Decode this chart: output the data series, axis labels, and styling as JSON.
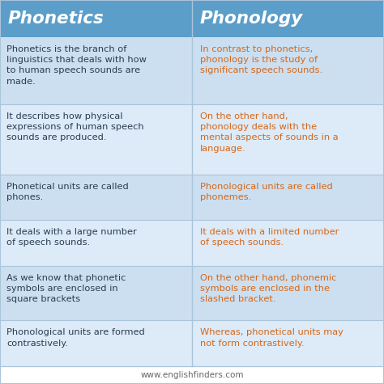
{
  "title_left": "Phonetics",
  "title_right": "Phonology",
  "header_bg": "#5b9ec9",
  "header_text_color": "#ffffff",
  "row_bg_odd": "#ccdff0",
  "row_bg_even": "#ddeaf7",
  "left_text_color": "#2a3d52",
  "right_text_color": "#d4681a",
  "divider_color": "#aac4da",
  "footer_text": "www.englishfinders.com",
  "footer_color": "#666666",
  "rows": [
    {
      "left": "Phonetics is the branch of\nlinguistics that deals with how\nto human speech sounds are\nmade.",
      "right": "In contrast to phonetics,\nphonology is the study of\nsignificant speech sounds."
    },
    {
      "left": "It describes how physical\nexpressions of human speech\nsounds are produced.",
      "right": "On the other hand,\nphonology deals with the\nmental aspects of sounds in a\nlanguage."
    },
    {
      "left": "Phonetical units are called\nphones.",
      "right": "Phonological units are called\nphonemes."
    },
    {
      "left": "It deals with a large number\nof speech sounds.",
      "right": "It deals with a limited number\nof speech sounds."
    },
    {
      "left": "As we know that phonetic\nsymbols are enclosed in\nsquare brackets",
      "right": "On the other hand, phonemic\nsymbols are enclosed in the\nslashed bracket."
    },
    {
      "left": "Phonological units are formed\ncontrastively.",
      "right": "Whereas, phonetical units may\nnot form contrastively."
    }
  ]
}
